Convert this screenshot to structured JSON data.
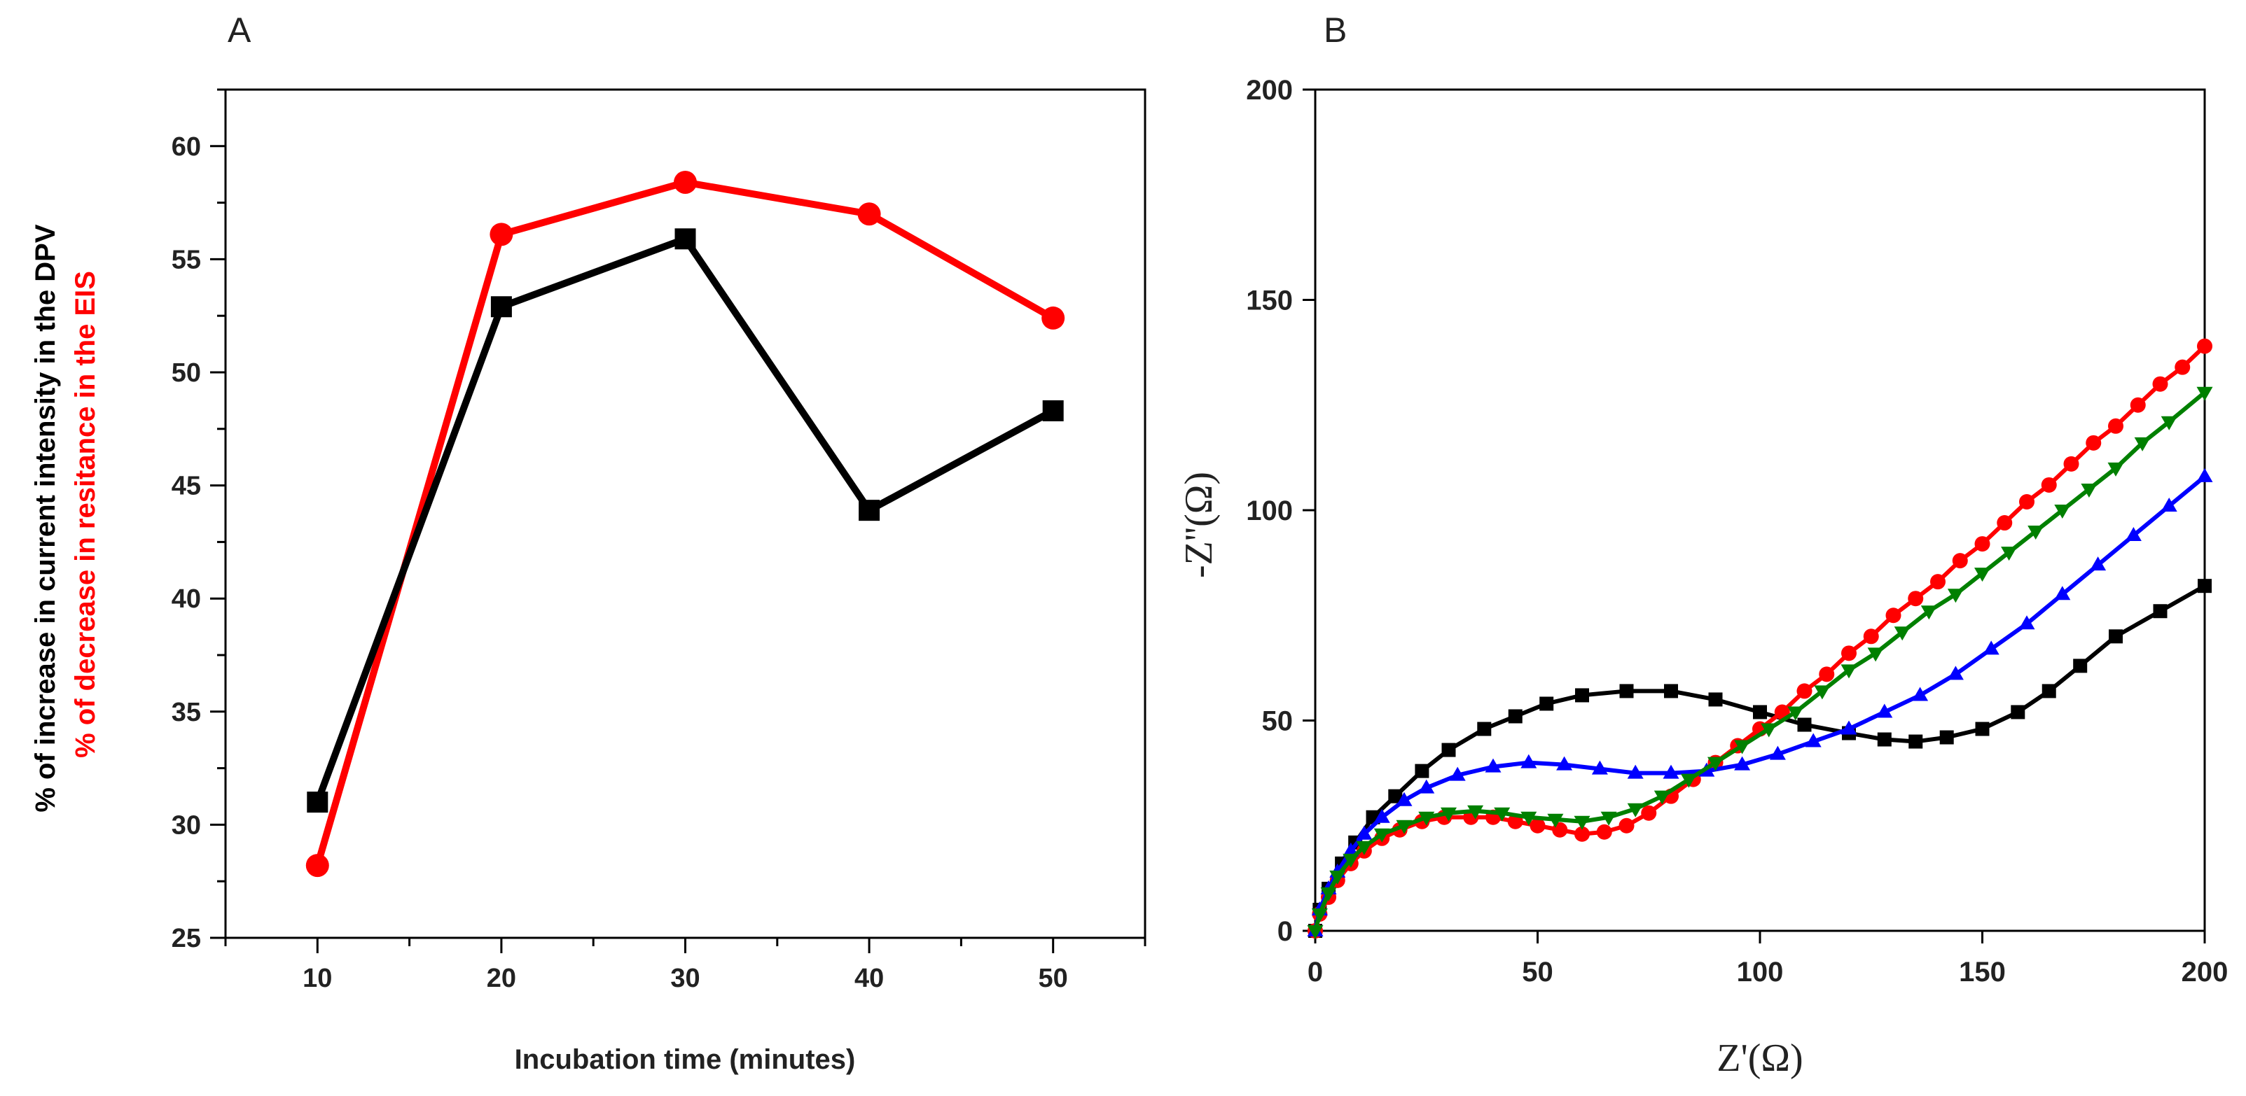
{
  "chart_data": [
    {
      "panel": "A",
      "type": "line",
      "xlabel": "Incubation time (minutes)",
      "ylabel_parts": [
        {
          "text": "% of increase in current intensity in the DPV",
          "color": "#000000"
        },
        {
          "text": "% of decrease in resitance in the EIS",
          "color": "#ff0000"
        }
      ],
      "xlim": [
        5,
        55
      ],
      "ylim": [
        25,
        62.5
      ],
      "xticks": [
        10,
        20,
        30,
        40,
        50
      ],
      "xticks_minor": [
        5,
        15,
        25,
        35,
        45,
        55
      ],
      "yticks": [
        25,
        30,
        35,
        40,
        45,
        50,
        55,
        60
      ],
      "yticks_minor": [
        27.5,
        32.5,
        37.5,
        42.5,
        47.5,
        52.5,
        57.5,
        62.5
      ],
      "x": [
        10,
        20,
        30,
        40,
        50
      ],
      "series": [
        {
          "color": "#000000",
          "marker": "square",
          "values": [
            31.0,
            52.9,
            55.9,
            43.9,
            48.3
          ]
        },
        {
          "color": "#ff0000",
          "marker": "circle",
          "values": [
            28.2,
            56.1,
            58.4,
            57.0,
            52.4
          ]
        }
      ]
    },
    {
      "panel": "B",
      "type": "scatter",
      "xlabel": "Z'(Ω)",
      "ylabel": "-Z''(Ω)",
      "xlim": [
        0,
        200
      ],
      "ylim": [
        0,
        200
      ],
      "xticks": [
        0,
        50,
        100,
        150,
        200
      ],
      "yticks": [
        0,
        50,
        100,
        150,
        200
      ],
      "series": [
        {
          "color": "#000000",
          "marker": "square",
          "points": [
            [
              0,
              0
            ],
            [
              1,
              5
            ],
            [
              3,
              10
            ],
            [
              6,
              16
            ],
            [
              9,
              21
            ],
            [
              13,
              27
            ],
            [
              18,
              32
            ],
            [
              24,
              38
            ],
            [
              30,
              43
            ],
            [
              38,
              48
            ],
            [
              45,
              51
            ],
            [
              52,
              54
            ],
            [
              60,
              56
            ],
            [
              70,
              57
            ],
            [
              80,
              57
            ],
            [
              90,
              55
            ],
            [
              100,
              52
            ],
            [
              110,
              49
            ],
            [
              120,
              47
            ],
            [
              128,
              45.5
            ],
            [
              135,
              45
            ],
            [
              142,
              46
            ],
            [
              150,
              48
            ],
            [
              158,
              52
            ],
            [
              165,
              57
            ],
            [
              172,
              63
            ],
            [
              180,
              70
            ],
            [
              190,
              76
            ],
            [
              200,
              82
            ]
          ]
        },
        {
          "color": "#ff0000",
          "marker": "circle",
          "points": [
            [
              0,
              0
            ],
            [
              1,
              4
            ],
            [
              3,
              8
            ],
            [
              5,
              12
            ],
            [
              8,
              16
            ],
            [
              11,
              19
            ],
            [
              15,
              22
            ],
            [
              19,
              24
            ],
            [
              24,
              26
            ],
            [
              29,
              27
            ],
            [
              35,
              27
            ],
            [
              40,
              27
            ],
            [
              45,
              26
            ],
            [
              50,
              25
            ],
            [
              55,
              24
            ],
            [
              60,
              23
            ],
            [
              65,
              23.5
            ],
            [
              70,
              25
            ],
            [
              75,
              28
            ],
            [
              80,
              32
            ],
            [
              85,
              36
            ],
            [
              90,
              40
            ],
            [
              95,
              44
            ],
            [
              100,
              48
            ],
            [
              105,
              52
            ],
            [
              110,
              57
            ],
            [
              115,
              61
            ],
            [
              120,
              66
            ],
            [
              125,
              70
            ],
            [
              130,
              75
            ],
            [
              135,
              79
            ],
            [
              140,
              83
            ],
            [
              145,
              88
            ],
            [
              150,
              92
            ],
            [
              155,
              97
            ],
            [
              160,
              102
            ],
            [
              165,
              106
            ],
            [
              170,
              111
            ],
            [
              175,
              116
            ],
            [
              180,
              120
            ],
            [
              185,
              125
            ],
            [
              190,
              130
            ],
            [
              195,
              134
            ],
            [
              200,
              139
            ]
          ]
        },
        {
          "color": "#0000ff",
          "marker": "triangle-up",
          "points": [
            [
              0,
              0
            ],
            [
              1,
              5
            ],
            [
              3,
              10
            ],
            [
              5,
              14
            ],
            [
              8,
              19
            ],
            [
              11,
              23
            ],
            [
              15,
              27
            ],
            [
              20,
              31
            ],
            [
              25,
              34
            ],
            [
              32,
              37
            ],
            [
              40,
              39
            ],
            [
              48,
              40
            ],
            [
              56,
              39.5
            ],
            [
              64,
              38.5
            ],
            [
              72,
              37.5
            ],
            [
              80,
              37.5
            ],
            [
              88,
              38
            ],
            [
              96,
              39.5
            ],
            [
              104,
              42
            ],
            [
              112,
              45
            ],
            [
              120,
              48
            ],
            [
              128,
              52
            ],
            [
              136,
              56
            ],
            [
              144,
              61
            ],
            [
              152,
              67
            ],
            [
              160,
              73
            ],
            [
              168,
              80
            ],
            [
              176,
              87
            ],
            [
              184,
              94
            ],
            [
              192,
              101
            ],
            [
              200,
              108
            ]
          ]
        },
        {
          "color": "#008000",
          "marker": "triangle-down",
          "points": [
            [
              0,
              0
            ],
            [
              1,
              4
            ],
            [
              3,
              9
            ],
            [
              5,
              13
            ],
            [
              8,
              17
            ],
            [
              11,
              20
            ],
            [
              15,
              23
            ],
            [
              20,
              25
            ],
            [
              25,
              27
            ],
            [
              30,
              28
            ],
            [
              36,
              28.5
            ],
            [
              42,
              28
            ],
            [
              48,
              27
            ],
            [
              54,
              26.5
            ],
            [
              60,
              26
            ],
            [
              66,
              27
            ],
            [
              72,
              29
            ],
            [
              78,
              32
            ],
            [
              84,
              36
            ],
            [
              90,
              40
            ],
            [
              96,
              44
            ],
            [
              102,
              48
            ],
            [
              108,
              52
            ],
            [
              114,
              57
            ],
            [
              120,
              62
            ],
            [
              126,
              66
            ],
            [
              132,
              71
            ],
            [
              138,
              76
            ],
            [
              144,
              80
            ],
            [
              150,
              85
            ],
            [
              156,
              90
            ],
            [
              162,
              95
            ],
            [
              168,
              100
            ],
            [
              174,
              105
            ],
            [
              180,
              110
            ],
            [
              186,
              116
            ],
            [
              192,
              121
            ],
            [
              200,
              128
            ]
          ]
        }
      ]
    }
  ],
  "panels": {
    "a_label": "A",
    "b_label": "B"
  }
}
